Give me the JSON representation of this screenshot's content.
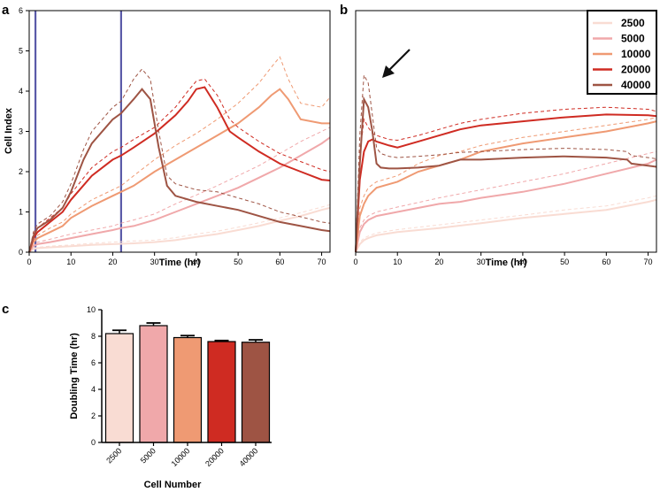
{
  "colors": {
    "2500": "#f9dcd3",
    "5000": "#f0a8aa",
    "10000": "#ef9a73",
    "20000": "#cf2b22",
    "40000": "#9e5444",
    "marker_line": "#5a5aa8"
  },
  "chart_data": [
    {
      "panel": "a",
      "type": "line",
      "xlabel": "Time (hr)",
      "ylabel": "Cell Index",
      "xlim": [
        0,
        72
      ],
      "ylim": [
        0,
        6
      ],
      "xticks": [
        "0",
        "10",
        "20",
        "30",
        "40",
        "50",
        "60",
        "70"
      ],
      "yticks": [
        "0",
        "1",
        "2",
        "3",
        "4",
        "5",
        "6"
      ],
      "vertical_markers": [
        1.5,
        22
      ],
      "series": [
        {
          "name": "2500",
          "x": [
            0,
            1,
            2,
            5,
            10,
            15,
            20,
            25,
            30,
            35,
            40,
            45,
            50,
            55,
            60,
            65,
            70,
            72
          ],
          "y": [
            0,
            0.08,
            0.1,
            0.12,
            0.15,
            0.18,
            0.2,
            0.22,
            0.25,
            0.3,
            0.38,
            0.45,
            0.55,
            0.65,
            0.78,
            0.9,
            1.05,
            1.1
          ],
          "upper": [
            0,
            0.1,
            0.12,
            0.15,
            0.18,
            0.22,
            0.25,
            0.28,
            0.3,
            0.36,
            0.45,
            0.52,
            0.62,
            0.73,
            0.85,
            0.98,
            1.12,
            1.18
          ]
        },
        {
          "name": "5000",
          "x": [
            0,
            1,
            2,
            5,
            10,
            15,
            20,
            22,
            25,
            30,
            35,
            40,
            45,
            50,
            55,
            60,
            65,
            70,
            72
          ],
          "y": [
            0,
            0.15,
            0.2,
            0.25,
            0.35,
            0.45,
            0.55,
            0.6,
            0.65,
            0.8,
            1.0,
            1.2,
            1.4,
            1.6,
            1.85,
            2.1,
            2.4,
            2.7,
            2.85
          ],
          "upper": [
            0,
            0.2,
            0.25,
            0.32,
            0.45,
            0.55,
            0.65,
            0.72,
            0.8,
            0.95,
            1.2,
            1.42,
            1.65,
            1.9,
            2.15,
            2.45,
            2.75,
            3.0,
            3.1
          ]
        },
        {
          "name": "10000",
          "x": [
            0,
            1,
            2,
            5,
            8,
            10,
            15,
            20,
            22,
            25,
            30,
            35,
            40,
            45,
            50,
            55,
            58,
            60,
            62,
            65,
            70,
            72
          ],
          "y": [
            0,
            0.25,
            0.35,
            0.5,
            0.65,
            0.85,
            1.15,
            1.4,
            1.5,
            1.65,
            2.0,
            2.3,
            2.6,
            2.9,
            3.2,
            3.6,
            3.9,
            4.05,
            3.8,
            3.3,
            3.2,
            3.2
          ],
          "upper": [
            0,
            0.3,
            0.42,
            0.6,
            0.75,
            0.95,
            1.3,
            1.55,
            1.65,
            1.9,
            2.3,
            2.65,
            2.95,
            3.3,
            3.7,
            4.2,
            4.6,
            4.85,
            4.3,
            3.7,
            3.6,
            3.85
          ]
        },
        {
          "name": "20000",
          "x": [
            0,
            1,
            2,
            5,
            8,
            10,
            15,
            20,
            22,
            25,
            30,
            35,
            38,
            40,
            42,
            45,
            48,
            50,
            55,
            60,
            65,
            70,
            72
          ],
          "y": [
            0,
            0.35,
            0.5,
            0.75,
            1.0,
            1.3,
            1.9,
            2.3,
            2.4,
            2.6,
            2.95,
            3.4,
            3.75,
            4.05,
            4.1,
            3.6,
            3.0,
            2.85,
            2.5,
            2.2,
            2.0,
            1.8,
            1.78
          ],
          "upper": [
            0,
            0.45,
            0.6,
            0.85,
            1.1,
            1.45,
            2.1,
            2.5,
            2.6,
            2.8,
            3.1,
            3.6,
            4.0,
            4.25,
            4.3,
            3.9,
            3.3,
            3.1,
            2.75,
            2.45,
            2.25,
            2.05,
            2.0
          ]
        },
        {
          "name": "40000",
          "x": [
            0,
            1,
            2,
            5,
            8,
            10,
            13,
            15,
            20,
            22,
            25,
            27,
            29,
            31,
            33,
            35,
            40,
            45,
            50,
            55,
            60,
            65,
            70,
            72
          ],
          "y": [
            0,
            0.4,
            0.6,
            0.8,
            1.1,
            1.5,
            2.3,
            2.7,
            3.3,
            3.45,
            3.8,
            4.05,
            3.8,
            2.6,
            1.65,
            1.4,
            1.25,
            1.15,
            1.05,
            0.9,
            0.75,
            0.65,
            0.55,
            0.52
          ],
          "upper": [
            0,
            0.5,
            0.7,
            0.9,
            1.25,
            1.7,
            2.55,
            3.0,
            3.6,
            3.75,
            4.3,
            4.55,
            4.3,
            3.0,
            1.9,
            1.7,
            1.55,
            1.5,
            1.35,
            1.2,
            1.0,
            0.88,
            0.75,
            0.72
          ]
        }
      ]
    },
    {
      "panel": "b",
      "type": "line",
      "xlabel": "Time (hr)",
      "ylabel": "",
      "xlim": [
        0,
        72
      ],
      "ylim": [
        0,
        6
      ],
      "xticks": [
        "0",
        "10",
        "20",
        "30",
        "40",
        "50",
        "60",
        "70"
      ],
      "yticks": [],
      "legend_position": "top-right",
      "legend": [
        "2500",
        "5000",
        "10000",
        "20000",
        "40000"
      ],
      "series": [
        {
          "name": "2500",
          "x": [
            0,
            1,
            2,
            3,
            5,
            10,
            20,
            30,
            40,
            50,
            60,
            70,
            72
          ],
          "y": [
            0,
            0.2,
            0.3,
            0.35,
            0.42,
            0.5,
            0.6,
            0.72,
            0.85,
            0.95,
            1.05,
            1.25,
            1.3
          ],
          "upper": [
            0,
            0.25,
            0.35,
            0.4,
            0.48,
            0.56,
            0.68,
            0.8,
            0.92,
            1.05,
            1.15,
            1.35,
            1.4
          ]
        },
        {
          "name": "5000",
          "x": [
            0,
            1,
            2,
            3,
            5,
            10,
            20,
            25,
            30,
            40,
            50,
            60,
            70,
            72
          ],
          "y": [
            0,
            0.5,
            0.7,
            0.8,
            0.9,
            1.0,
            1.2,
            1.25,
            1.35,
            1.5,
            1.7,
            1.95,
            2.2,
            2.3
          ],
          "upper": [
            0,
            0.6,
            0.8,
            0.9,
            1.0,
            1.12,
            1.35,
            1.45,
            1.55,
            1.75,
            1.95,
            2.2,
            2.45,
            2.5
          ]
        },
        {
          "name": "10000",
          "x": [
            0,
            1,
            2,
            3,
            5,
            10,
            15,
            20,
            25,
            30,
            40,
            50,
            60,
            70,
            72
          ],
          "y": [
            0,
            0.9,
            1.2,
            1.4,
            1.6,
            1.75,
            2.0,
            2.15,
            2.3,
            2.5,
            2.7,
            2.85,
            3.0,
            3.2,
            3.25
          ],
          "upper": [
            0,
            1.1,
            1.4,
            1.6,
            1.75,
            1.9,
            2.2,
            2.4,
            2.5,
            2.65,
            2.85,
            3.0,
            3.15,
            3.3,
            3.35
          ]
        },
        {
          "name": "20000",
          "x": [
            0,
            1,
            2,
            3,
            4,
            5,
            8,
            10,
            15,
            20,
            25,
            30,
            40,
            50,
            60,
            70,
            72
          ],
          "y": [
            0,
            1.8,
            2.5,
            2.75,
            2.8,
            2.75,
            2.65,
            2.6,
            2.75,
            2.9,
            3.05,
            3.15,
            3.25,
            3.35,
            3.42,
            3.4,
            3.38
          ],
          "upper": [
            0,
            2.4,
            3.3,
            3.1,
            2.95,
            2.9,
            2.8,
            2.78,
            2.9,
            3.05,
            3.2,
            3.3,
            3.45,
            3.55,
            3.6,
            3.55,
            3.5
          ]
        },
        {
          "name": "40000",
          "x": [
            0,
            1,
            2,
            3,
            4,
            5,
            6,
            8,
            10,
            15,
            20,
            25,
            30,
            40,
            50,
            60,
            65,
            66,
            70,
            72
          ],
          "y": [
            0,
            2.2,
            3.8,
            3.6,
            3.0,
            2.2,
            2.1,
            2.08,
            2.08,
            2.1,
            2.15,
            2.3,
            2.3,
            2.35,
            2.38,
            2.35,
            2.3,
            2.2,
            2.15,
            2.12
          ],
          "upper": [
            0,
            2.9,
            4.4,
            4.2,
            3.4,
            2.6,
            2.45,
            2.38,
            2.35,
            2.38,
            2.42,
            2.48,
            2.5,
            2.55,
            2.58,
            2.55,
            2.5,
            2.4,
            2.35,
            2.32
          ]
        }
      ]
    },
    {
      "panel": "c",
      "type": "bar",
      "xlabel": "Cell Number",
      "ylabel": "Doubling Time (hr)",
      "ylim": [
        0,
        10
      ],
      "yticks": [
        "0",
        "2",
        "4",
        "6",
        "8",
        "10"
      ],
      "categories": [
        "2500",
        "5000",
        "10000",
        "20000",
        "40000"
      ],
      "values": [
        8.2,
        8.8,
        7.9,
        7.6,
        7.55
      ],
      "errors": [
        0.25,
        0.2,
        0.15,
        0.08,
        0.18
      ]
    }
  ]
}
